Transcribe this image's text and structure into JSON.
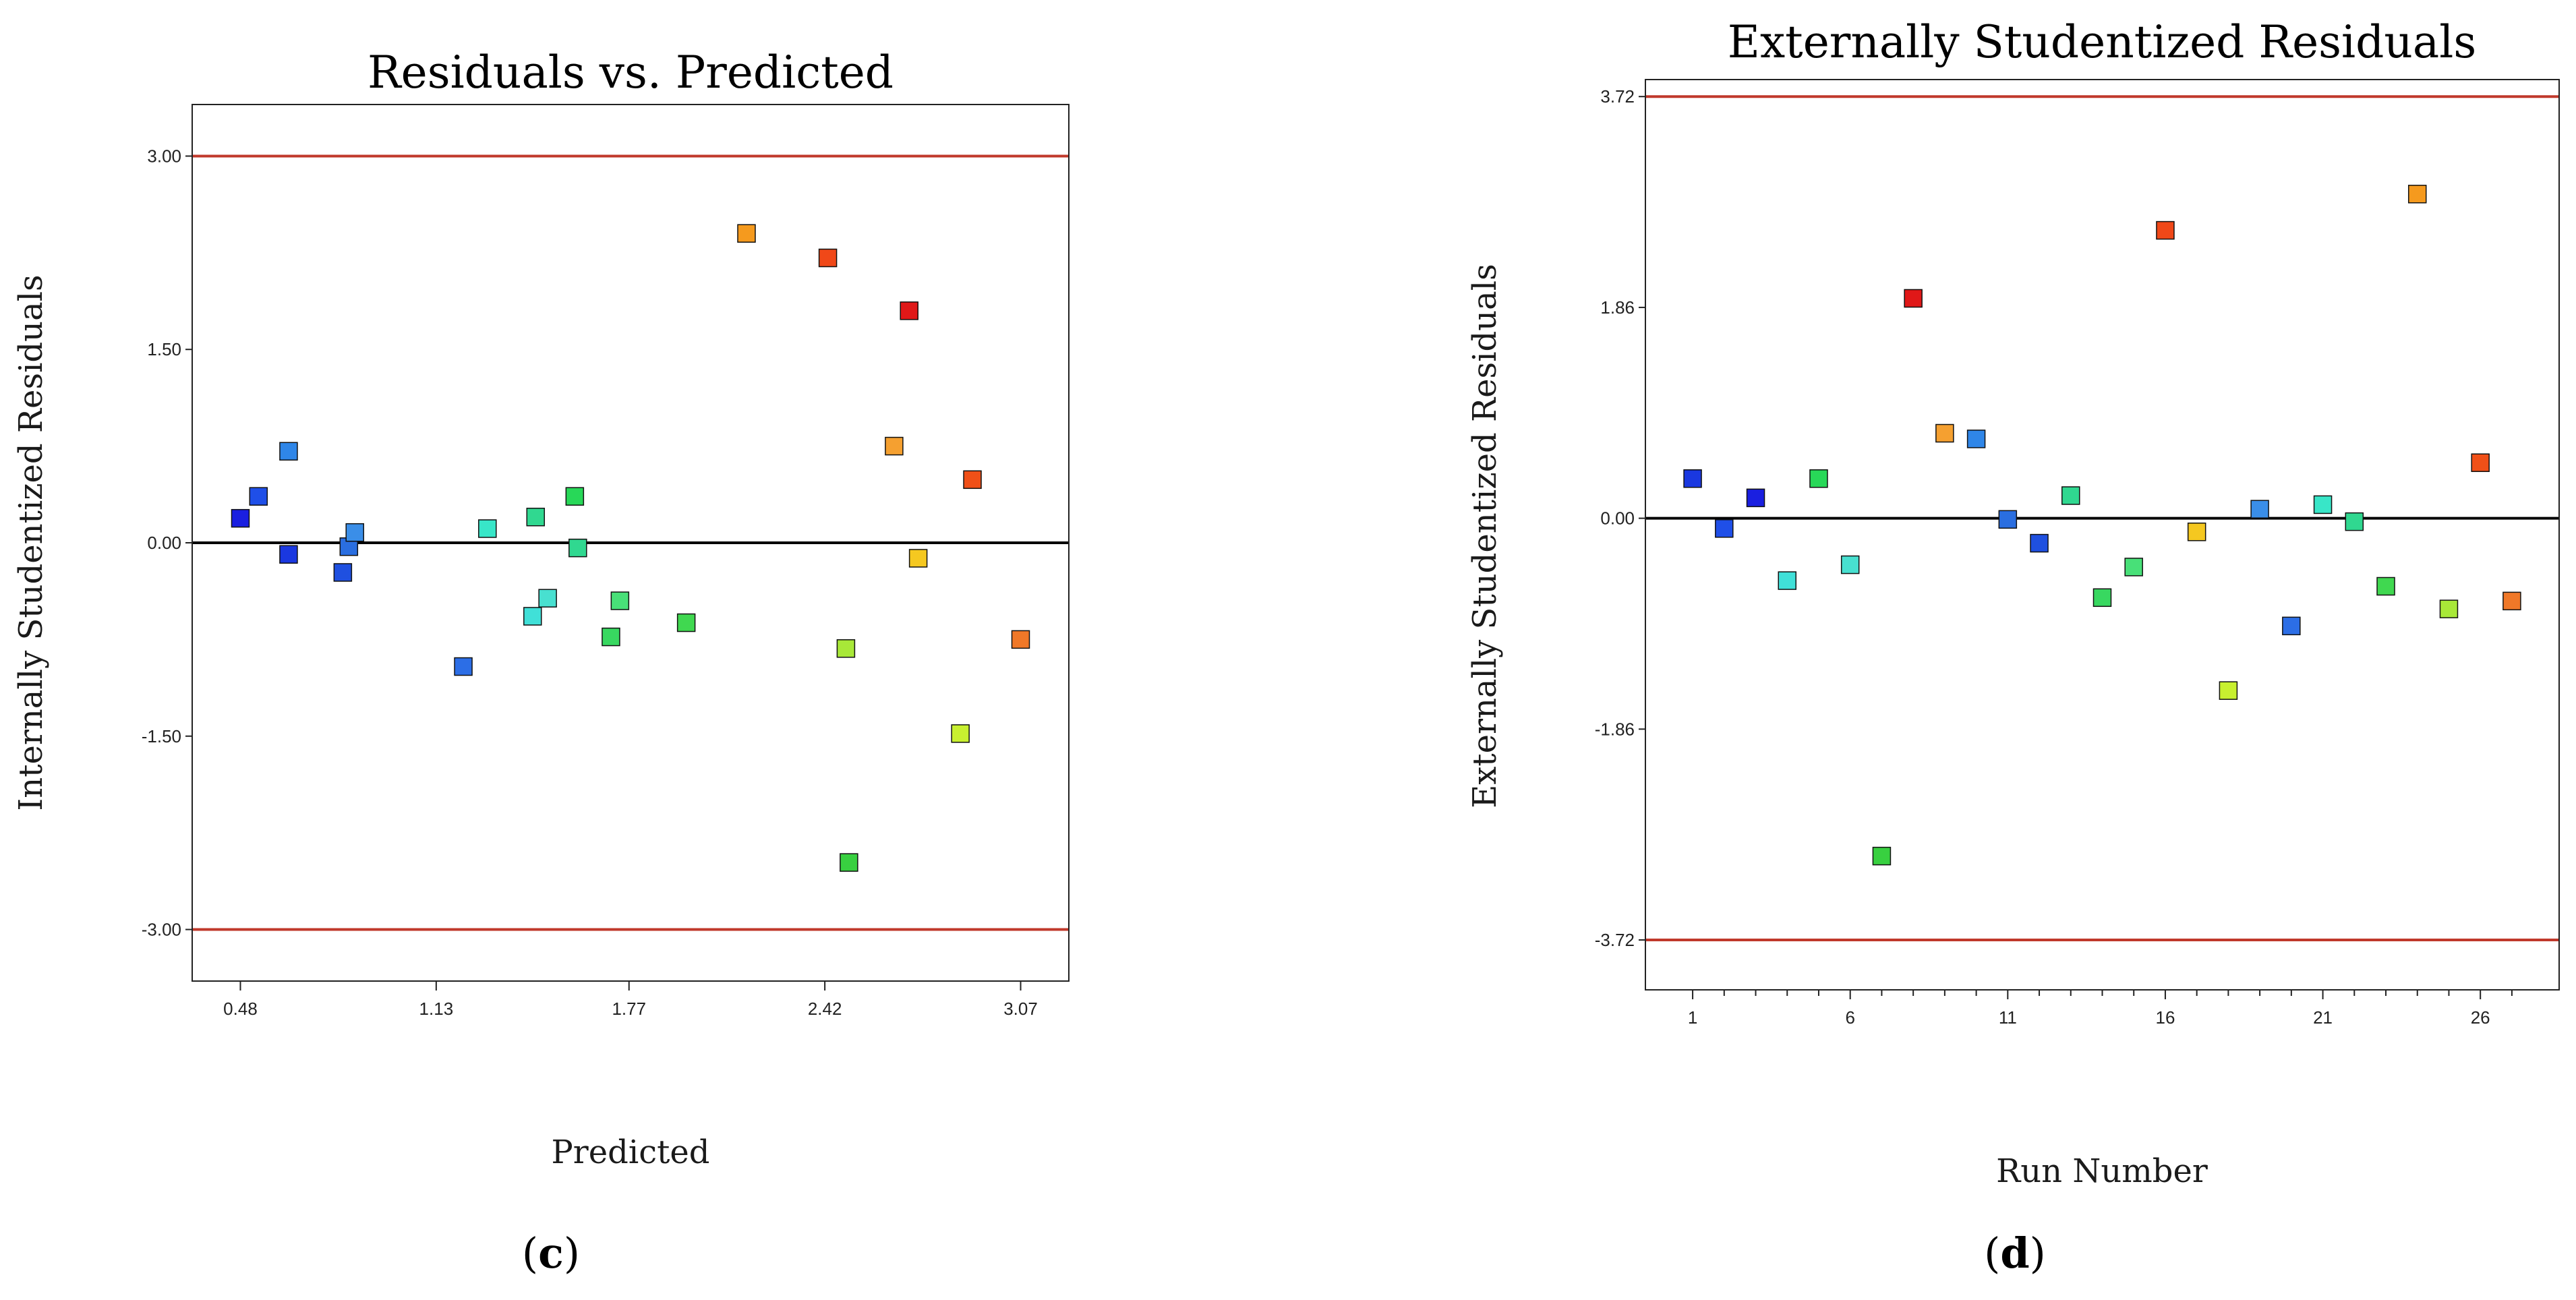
{
  "colors": {
    "limit_line": "#c0392b",
    "zero_line": "#000000",
    "frame": "#222222",
    "marker_stroke": "#111111"
  },
  "chart_data": [
    {
      "id": "c",
      "type": "scatter",
      "title": "Residuals vs. Predicted",
      "xlabel": "Predicted",
      "ylabel": "Internally Studentized Residuals",
      "panel_label": "c",
      "xlim": [
        0.32,
        3.23
      ],
      "ylim": [
        -3.4,
        3.4
      ],
      "xticks": [
        0.48,
        1.13,
        1.77,
        2.42,
        3.07
      ],
      "xtick_labels": [
        "0.48",
        "1.13",
        "1.77",
        "2.42",
        "3.07"
      ],
      "yticks": [
        3.0,
        1.5,
        0.0,
        -1.5,
        -3.0
      ],
      "ytick_labels": [
        "3.00",
        "1.50",
        "0.00",
        "-1.50",
        "-3.00"
      ],
      "limits": [
        3.0,
        -3.0
      ],
      "reference": 0.0,
      "points": [
        {
          "x": 0.48,
          "y": 0.19,
          "color": "#1a1fe0"
        },
        {
          "x": 0.54,
          "y": 0.36,
          "color": "#1f4fe8"
        },
        {
          "x": 0.64,
          "y": 0.71,
          "color": "#2f86e8"
        },
        {
          "x": 0.64,
          "y": -0.09,
          "color": "#1a38e0"
        },
        {
          "x": 0.82,
          "y": -0.23,
          "color": "#1f50e0"
        },
        {
          "x": 0.84,
          "y": -0.03,
          "color": "#2a6ee0"
        },
        {
          "x": 0.86,
          "y": 0.08,
          "color": "#3a8ee8"
        },
        {
          "x": 1.22,
          "y": -0.96,
          "color": "#2c6ee6"
        },
        {
          "x": 1.3,
          "y": 0.11,
          "color": "#38e6c8"
        },
        {
          "x": 1.45,
          "y": -0.57,
          "color": "#40e0d8"
        },
        {
          "x": 1.46,
          "y": 0.2,
          "color": "#30d890"
        },
        {
          "x": 1.5,
          "y": -0.43,
          "color": "#48e0d0"
        },
        {
          "x": 1.59,
          "y": 0.36,
          "color": "#28d858"
        },
        {
          "x": 1.6,
          "y": -0.04,
          "color": "#30d890"
        },
        {
          "x": 1.71,
          "y": -0.73,
          "color": "#38d860"
        },
        {
          "x": 1.74,
          "y": -0.45,
          "color": "#48e078"
        },
        {
          "x": 1.96,
          "y": -0.62,
          "color": "#40d850"
        },
        {
          "x": 2.16,
          "y": 2.4,
          "color": "#f59a1e"
        },
        {
          "x": 2.43,
          "y": 2.21,
          "color": "#f04818"
        },
        {
          "x": 2.49,
          "y": -0.82,
          "color": "#a8e838"
        },
        {
          "x": 2.5,
          "y": -2.48,
          "color": "#38d040"
        },
        {
          "x": 2.65,
          "y": 0.75,
          "color": "#f5a030"
        },
        {
          "x": 2.7,
          "y": 1.8,
          "color": "#e01818"
        },
        {
          "x": 2.73,
          "y": -0.12,
          "color": "#f5c820"
        },
        {
          "x": 2.87,
          "y": -1.48,
          "color": "#c8f030"
        },
        {
          "x": 2.91,
          "y": 0.49,
          "color": "#f05018"
        },
        {
          "x": 3.07,
          "y": -0.75,
          "color": "#f07828"
        }
      ]
    },
    {
      "id": "d",
      "type": "scatter",
      "title": "Externally Studentized Residuals",
      "xlabel": "Run Number",
      "ylabel": "Externally Studentized Residuals",
      "panel_label": "d",
      "xlim": [
        -0.5,
        28.5
      ],
      "ylim": [
        -4.16,
        3.87
      ],
      "xticks": [
        1,
        6,
        11,
        16,
        21,
        26
      ],
      "xtick_labels": [
        "1",
        "6",
        "11",
        "16",
        "21",
        "26"
      ],
      "minor_xticks": [
        2,
        3,
        4,
        5,
        7,
        8,
        9,
        10,
        12,
        13,
        14,
        15,
        17,
        18,
        19,
        20,
        22,
        23,
        24,
        25,
        27
      ],
      "yticks": [
        3.72,
        1.86,
        0.0,
        -1.86,
        -3.72
      ],
      "ytick_labels": [
        "3.72",
        "1.86",
        "0.00",
        "-1.86",
        "-3.72"
      ],
      "limits": [
        3.72,
        -3.72
      ],
      "reference": 0.0,
      "points": [
        {
          "x": 1,
          "y": 0.35,
          "color": "#1a38e0"
        },
        {
          "x": 2,
          "y": -0.09,
          "color": "#1f4fe8"
        },
        {
          "x": 3,
          "y": 0.18,
          "color": "#1a1fe0"
        },
        {
          "x": 4,
          "y": -0.55,
          "color": "#40e0d8"
        },
        {
          "x": 5,
          "y": 0.35,
          "color": "#28d858"
        },
        {
          "x": 6,
          "y": -0.41,
          "color": "#48e0d0"
        },
        {
          "x": 7,
          "y": -2.98,
          "color": "#38d040"
        },
        {
          "x": 8,
          "y": 1.94,
          "color": "#e01818"
        },
        {
          "x": 9,
          "y": 0.75,
          "color": "#f5a030"
        },
        {
          "x": 10,
          "y": 0.7,
          "color": "#2f86e8"
        },
        {
          "x": 11,
          "y": -0.01,
          "color": "#2a6ee0"
        },
        {
          "x": 12,
          "y": -0.22,
          "color": "#1f50e0"
        },
        {
          "x": 13,
          "y": 0.2,
          "color": "#30d890"
        },
        {
          "x": 14,
          "y": -0.7,
          "color": "#38d860"
        },
        {
          "x": 15,
          "y": -0.43,
          "color": "#48e078"
        },
        {
          "x": 16,
          "y": 2.54,
          "color": "#f04818"
        },
        {
          "x": 17,
          "y": -0.12,
          "color": "#f5c820"
        },
        {
          "x": 18,
          "y": -1.52,
          "color": "#c8f030"
        },
        {
          "x": 19,
          "y": 0.08,
          "color": "#3a8ee8"
        },
        {
          "x": 20,
          "y": -0.95,
          "color": "#2c6ee6"
        },
        {
          "x": 21,
          "y": 0.12,
          "color": "#38e6c8"
        },
        {
          "x": 22,
          "y": -0.03,
          "color": "#30d890"
        },
        {
          "x": 23,
          "y": -0.6,
          "color": "#40d850"
        },
        {
          "x": 24,
          "y": 2.86,
          "color": "#f59a1e"
        },
        {
          "x": 25,
          "y": -0.8,
          "color": "#a8e838"
        },
        {
          "x": 26,
          "y": 0.49,
          "color": "#f05018"
        },
        {
          "x": 27,
          "y": -0.73,
          "color": "#f07828"
        }
      ]
    }
  ]
}
